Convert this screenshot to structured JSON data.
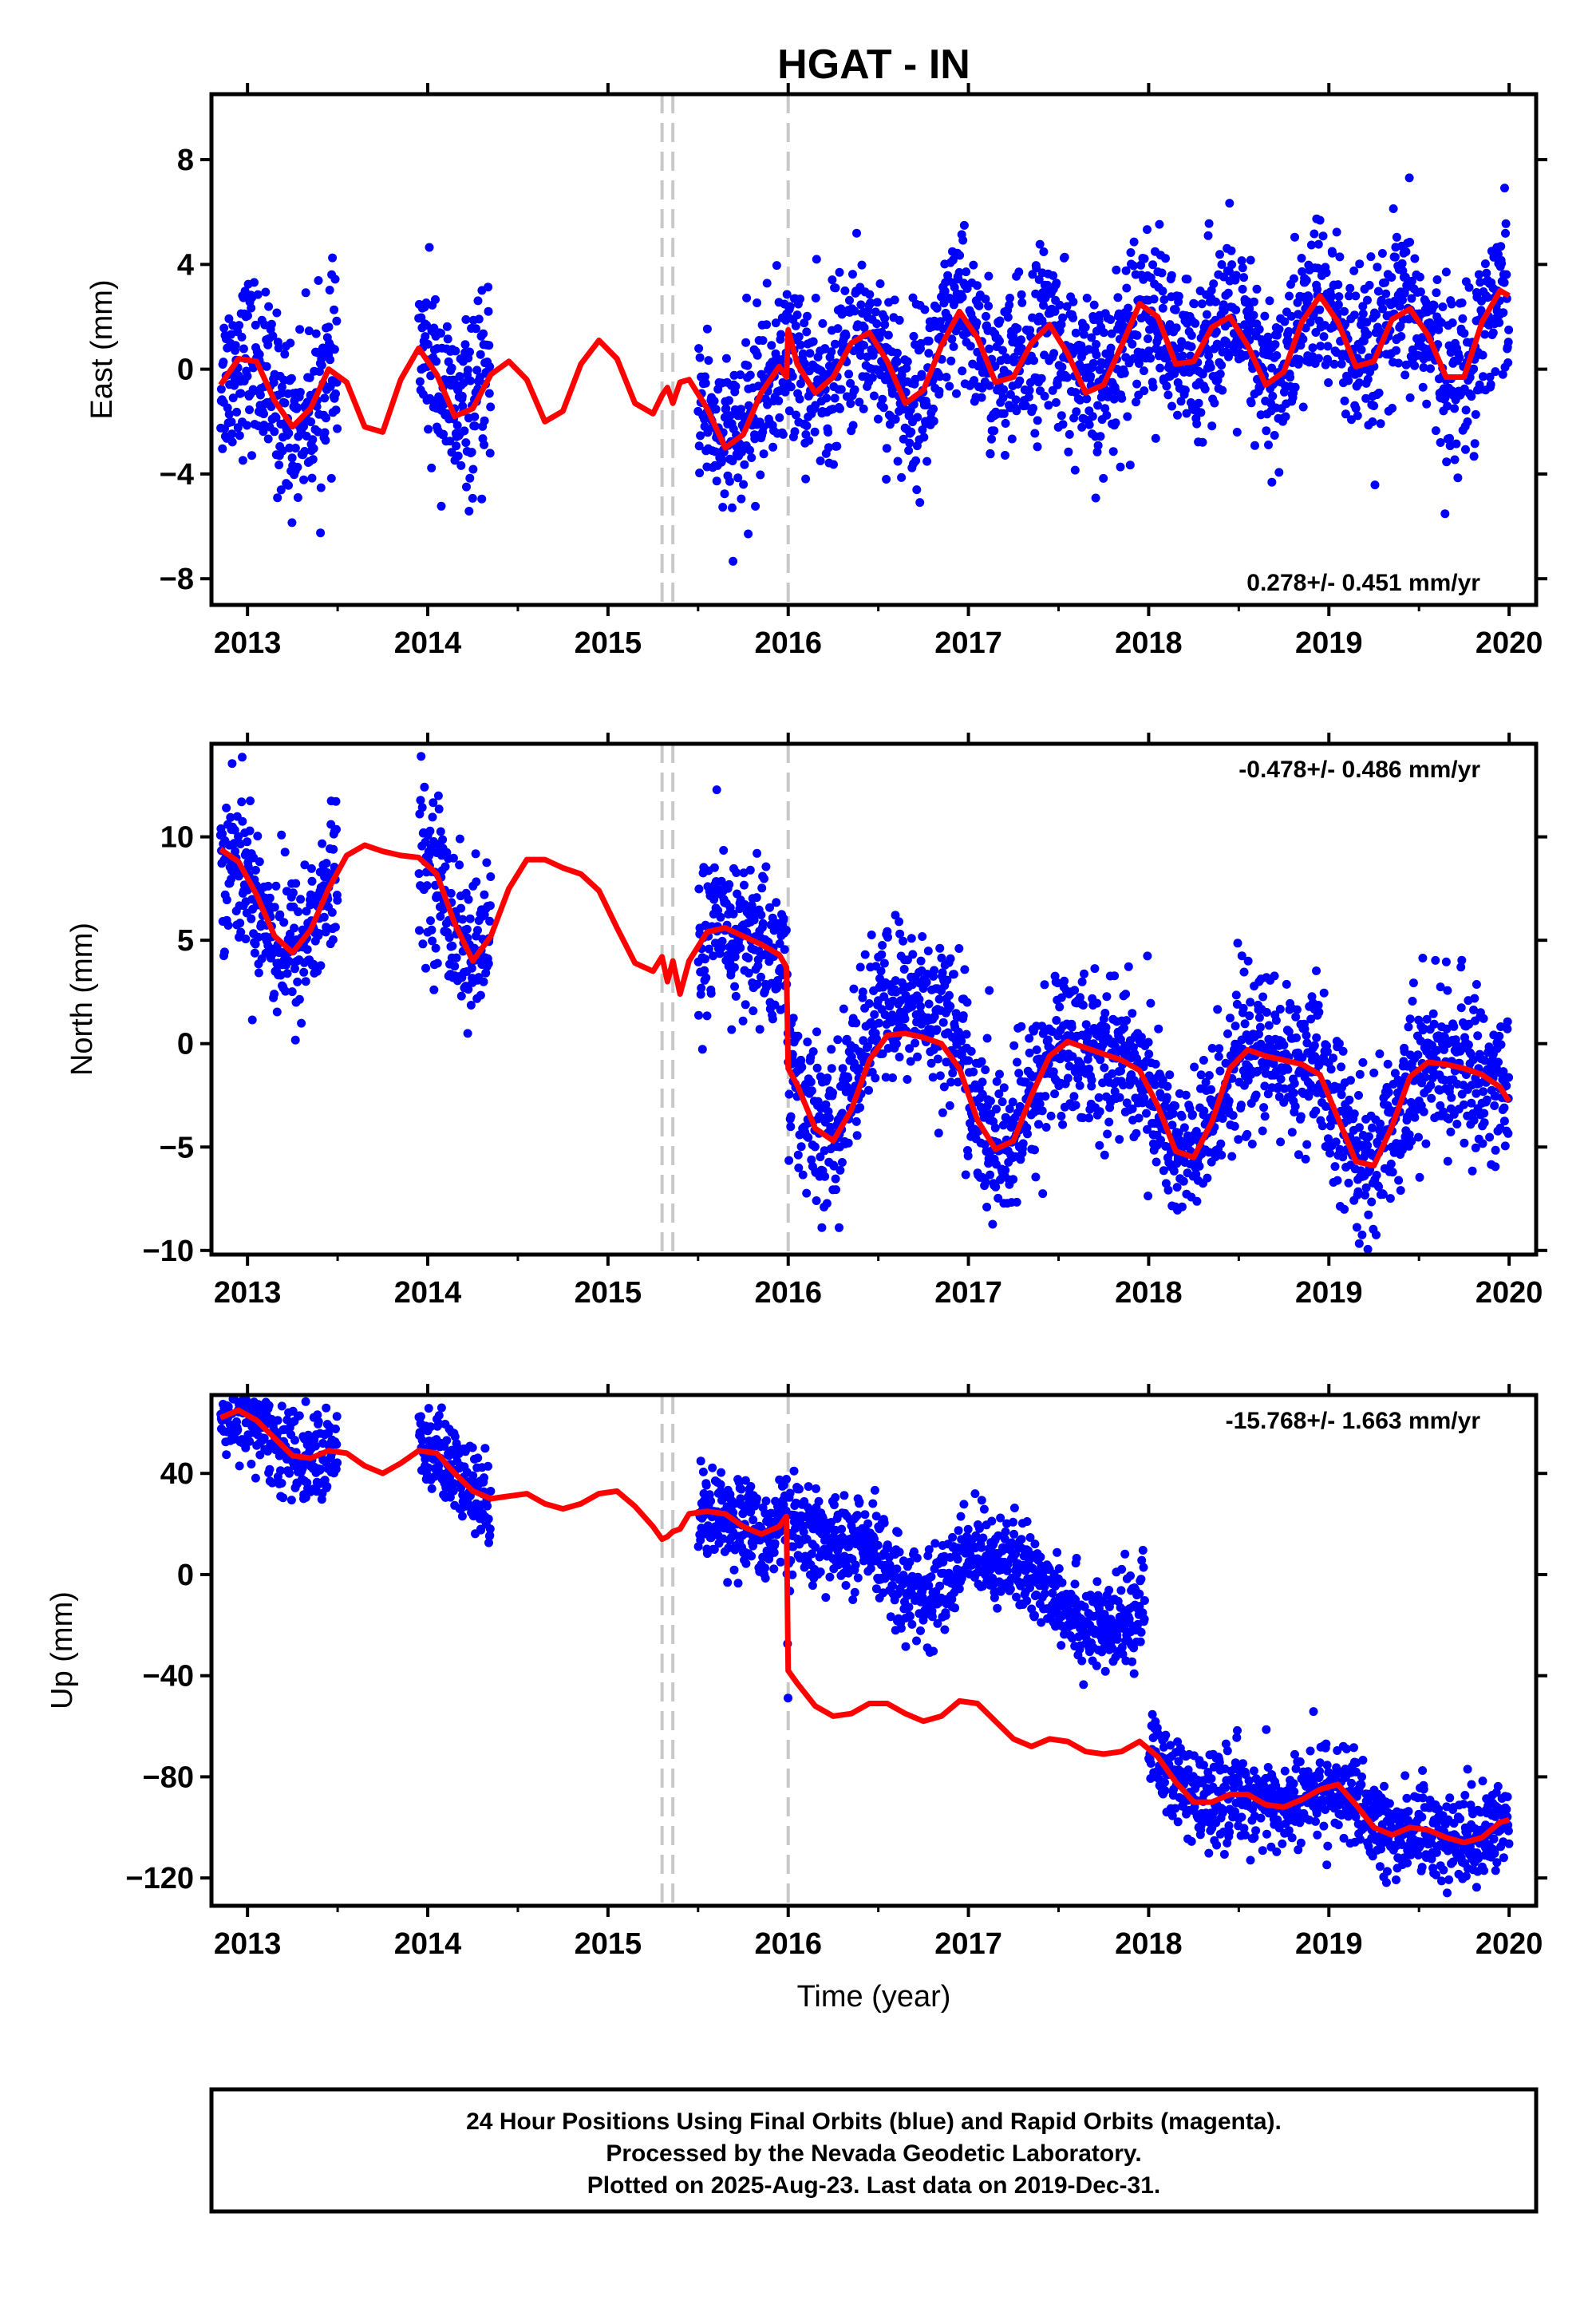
{
  "title": "HGAT - IN",
  "colors": {
    "points": "#0000ff",
    "model": "#ff0000",
    "event_lines": "#c8c8c8",
    "frame": "#000000"
  },
  "x_axis": {
    "label": "Time (year)",
    "ticks": [
      "2013",
      "2014",
      "2015",
      "2016",
      "2017",
      "2018",
      "2019",
      "2020"
    ]
  },
  "footer": {
    "line1": "24 Hour Positions Using Final Orbits (blue) and Rapid Orbits (magenta).",
    "line2": "Processed by the Nevada Geodetic Laboratory.",
    "line3": "Plotted on 2025-Aug-23. Last data on 2019-Dec-31."
  },
  "chart_data": [
    {
      "type": "scatter",
      "ylabel": "East (mm)",
      "rate_label": "0.278+/- 0.451 mm/yr",
      "rate_position": "bottom-right",
      "xlim": [
        2012.8,
        2020.15
      ],
      "ylim": [
        -9,
        10.5
      ],
      "yticks": [
        8,
        4,
        0,
        -4,
        -8
      ],
      "yticklabels": [
        "8",
        "4",
        "0",
        "−4",
        "−8"
      ],
      "event_lines": [
        2015.3,
        2015.36,
        2016.0
      ],
      "segments": [
        [
          2012.85,
          2013.5
        ],
        [
          2013.95,
          2014.35
        ],
        [
          2015.5,
          2020.0
        ]
      ],
      "model": {
        "x": [
          2012.85,
          2012.95,
          2013.05,
          2013.15,
          2013.25,
          2013.35,
          2013.45,
          2013.55,
          2013.65,
          2013.75,
          2013.85,
          2013.95,
          2014.05,
          2014.15,
          2014.25,
          2014.35,
          2014.45,
          2014.55,
          2014.65,
          2014.75,
          2014.85,
          2014.95,
          2015.05,
          2015.15,
          2015.25,
          2015.3,
          2015.33,
          2015.36,
          2015.4,
          2015.45,
          2015.55,
          2015.65,
          2015.75,
          2015.85,
          2015.95,
          2015.99,
          2016.0,
          2016.05,
          2016.15,
          2016.25,
          2016.35,
          2016.45,
          2016.55,
          2016.65,
          2016.75,
          2016.85,
          2016.95,
          2017.05,
          2017.15,
          2017.25,
          2017.35,
          2017.45,
          2017.55,
          2017.65,
          2017.75,
          2017.85,
          2017.95,
          2018.05,
          2018.15,
          2018.25,
          2018.35,
          2018.45,
          2018.55,
          2018.65,
          2018.75,
          2018.85,
          2018.95,
          2019.05,
          2019.15,
          2019.25,
          2019.35,
          2019.45,
          2019.55,
          2019.65,
          2019.75,
          2019.85,
          2019.95,
          2020.0
        ],
        "y": [
          -0.6,
          0.4,
          0.3,
          -1.2,
          -2.2,
          -1.5,
          0.0,
          -0.5,
          -2.2,
          -2.4,
          -0.4,
          0.8,
          -0.2,
          -1.8,
          -1.5,
          -0.2,
          0.3,
          -0.4,
          -2.0,
          -1.6,
          0.2,
          1.1,
          0.4,
          -1.3,
          -1.7,
          -1.0,
          -0.7,
          -1.3,
          -0.5,
          -0.4,
          -1.5,
          -3.0,
          -2.5,
          -0.9,
          0.1,
          -0.3,
          1.5,
          0.2,
          -0.9,
          -0.3,
          1.0,
          1.4,
          0.3,
          -1.3,
          -0.8,
          0.9,
          2.2,
          1.2,
          -0.5,
          -0.3,
          1.0,
          1.7,
          0.6,
          -0.9,
          -0.6,
          0.9,
          2.5,
          2.0,
          0.2,
          0.3,
          1.6,
          2.0,
          0.9,
          -0.6,
          -0.1,
          1.8,
          2.8,
          1.8,
          0.1,
          0.3,
          1.9,
          2.3,
          1.3,
          -0.3,
          -0.3,
          1.8,
          3.0,
          2.8
        ]
      }
    },
    {
      "type": "scatter",
      "ylabel": "North (mm)",
      "rate_label": "-0.478+/- 0.486 mm/yr",
      "rate_position": "top-right",
      "xlim": [
        2012.8,
        2020.15
      ],
      "ylim": [
        -10.2,
        14.5
      ],
      "yticks": [
        10,
        5,
        0,
        -5,
        -10
      ],
      "yticklabels": [
        "10",
        "5",
        "0",
        "−5",
        "−10"
      ],
      "event_lines": [
        2015.3,
        2015.36,
        2016.0
      ],
      "segments": [
        [
          2012.85,
          2013.5
        ],
        [
          2013.95,
          2014.35
        ],
        [
          2015.5,
          2020.0
        ]
      ],
      "model": {
        "x": [
          2012.85,
          2012.95,
          2013.05,
          2013.15,
          2013.25,
          2013.35,
          2013.45,
          2013.55,
          2013.65,
          2013.75,
          2013.85,
          2013.95,
          2014.05,
          2014.15,
          2014.25,
          2014.35,
          2014.45,
          2014.55,
          2014.65,
          2014.75,
          2014.85,
          2014.95,
          2015.05,
          2015.15,
          2015.25,
          2015.3,
          2015.33,
          2015.36,
          2015.4,
          2015.45,
          2015.55,
          2015.65,
          2015.75,
          2015.85,
          2015.95,
          2015.99,
          2016.0,
          2016.05,
          2016.15,
          2016.25,
          2016.35,
          2016.45,
          2016.55,
          2016.65,
          2016.75,
          2016.85,
          2016.95,
          2017.05,
          2017.15,
          2017.25,
          2017.35,
          2017.45,
          2017.55,
          2017.65,
          2017.75,
          2017.85,
          2017.95,
          2018.05,
          2018.15,
          2018.25,
          2018.35,
          2018.45,
          2018.55,
          2018.65,
          2018.75,
          2018.85,
          2018.95,
          2019.05,
          2019.15,
          2019.25,
          2019.35,
          2019.45,
          2019.55,
          2019.65,
          2019.75,
          2019.85,
          2019.95,
          2020.0
        ],
        "y": [
          9.4,
          8.8,
          7.2,
          5.2,
          4.4,
          5.5,
          7.5,
          9.1,
          9.6,
          9.3,
          9.1,
          9.0,
          8.2,
          5.8,
          4.0,
          5.2,
          7.5,
          8.9,
          8.9,
          8.5,
          8.2,
          7.4,
          5.6,
          3.9,
          3.5,
          4.2,
          3.0,
          4.0,
          2.4,
          4.0,
          5.4,
          5.6,
          5.2,
          4.8,
          4.3,
          3.7,
          -1.2,
          -2.0,
          -4.1,
          -4.7,
          -3.2,
          -0.8,
          0.4,
          0.5,
          0.3,
          0.0,
          -1.2,
          -3.7,
          -5.1,
          -4.7,
          -2.5,
          -0.6,
          0.1,
          -0.2,
          -0.5,
          -0.8,
          -1.3,
          -3.0,
          -5.2,
          -5.5,
          -3.8,
          -1.2,
          -0.3,
          -0.6,
          -0.8,
          -1.0,
          -1.5,
          -3.6,
          -5.7,
          -5.9,
          -4.0,
          -1.6,
          -0.9,
          -1.0,
          -1.2,
          -1.5,
          -2.1,
          -2.8
        ]
      }
    },
    {
      "type": "scatter",
      "ylabel": "Up (mm)",
      "rate_label": "-15.768+/- 1.663 mm/yr",
      "rate_position": "top-right",
      "xlim": [
        2012.8,
        2020.15
      ],
      "ylim": [
        -131,
        71
      ],
      "yticks": [
        40,
        0,
        -40,
        -80,
        -120
      ],
      "yticklabels": [
        "40",
        "0",
        "−40",
        "−80",
        "−120"
      ],
      "event_lines": [
        2015.3,
        2015.36,
        2016.0
      ],
      "segments": [
        [
          2012.85,
          2013.5
        ],
        [
          2013.95,
          2014.35
        ],
        [
          2015.5,
          2017.98
        ],
        [
          2018.0,
          2020.0
        ]
      ],
      "model": {
        "x": [
          2012.85,
          2012.95,
          2013.05,
          2013.15,
          2013.25,
          2013.35,
          2013.45,
          2013.55,
          2013.65,
          2013.75,
          2013.85,
          2013.95,
          2014.05,
          2014.15,
          2014.25,
          2014.35,
          2014.45,
          2014.55,
          2014.65,
          2014.75,
          2014.85,
          2014.95,
          2015.05,
          2015.15,
          2015.25,
          2015.3,
          2015.33,
          2015.36,
          2015.4,
          2015.45,
          2015.55,
          2015.65,
          2015.75,
          2015.85,
          2015.95,
          2015.99,
          2016.0,
          2016.05,
          2016.15,
          2016.25,
          2016.35,
          2016.45,
          2016.55,
          2016.65,
          2016.75,
          2016.85,
          2016.95,
          2017.05,
          2017.15,
          2017.25,
          2017.35,
          2017.45,
          2017.55,
          2017.65,
          2017.75,
          2017.85,
          2017.95,
          2018.05,
          2018.15,
          2018.25,
          2018.35,
          2018.45,
          2018.55,
          2018.65,
          2018.75,
          2018.85,
          2018.95,
          2019.05,
          2019.15,
          2019.25,
          2019.35,
          2019.45,
          2019.55,
          2019.65,
          2019.75,
          2019.85,
          2019.95,
          2020.0
        ],
        "y": [
          62,
          65,
          61,
          54,
          47,
          46,
          49,
          48,
          43,
          40,
          44,
          49,
          48,
          40,
          33,
          30,
          31,
          32,
          28,
          26,
          28,
          32,
          33,
          27,
          19,
          14,
          15,
          17,
          18,
          24,
          25,
          24,
          19,
          16,
          19,
          23,
          -38,
          -43,
          -52,
          -56,
          -55,
          -51,
          -51,
          -55,
          -58,
          -56,
          -50,
          -51,
          -58,
          -65,
          -68,
          -65,
          -66,
          -70,
          -71,
          -70,
          -66,
          -72,
          -82,
          -90,
          -90,
          -87,
          -87,
          -91,
          -92,
          -89,
          -85,
          -83,
          -91,
          -100,
          -103,
          -100,
          -101,
          -104,
          -106,
          -104,
          -98,
          -97
        ]
      }
    }
  ]
}
